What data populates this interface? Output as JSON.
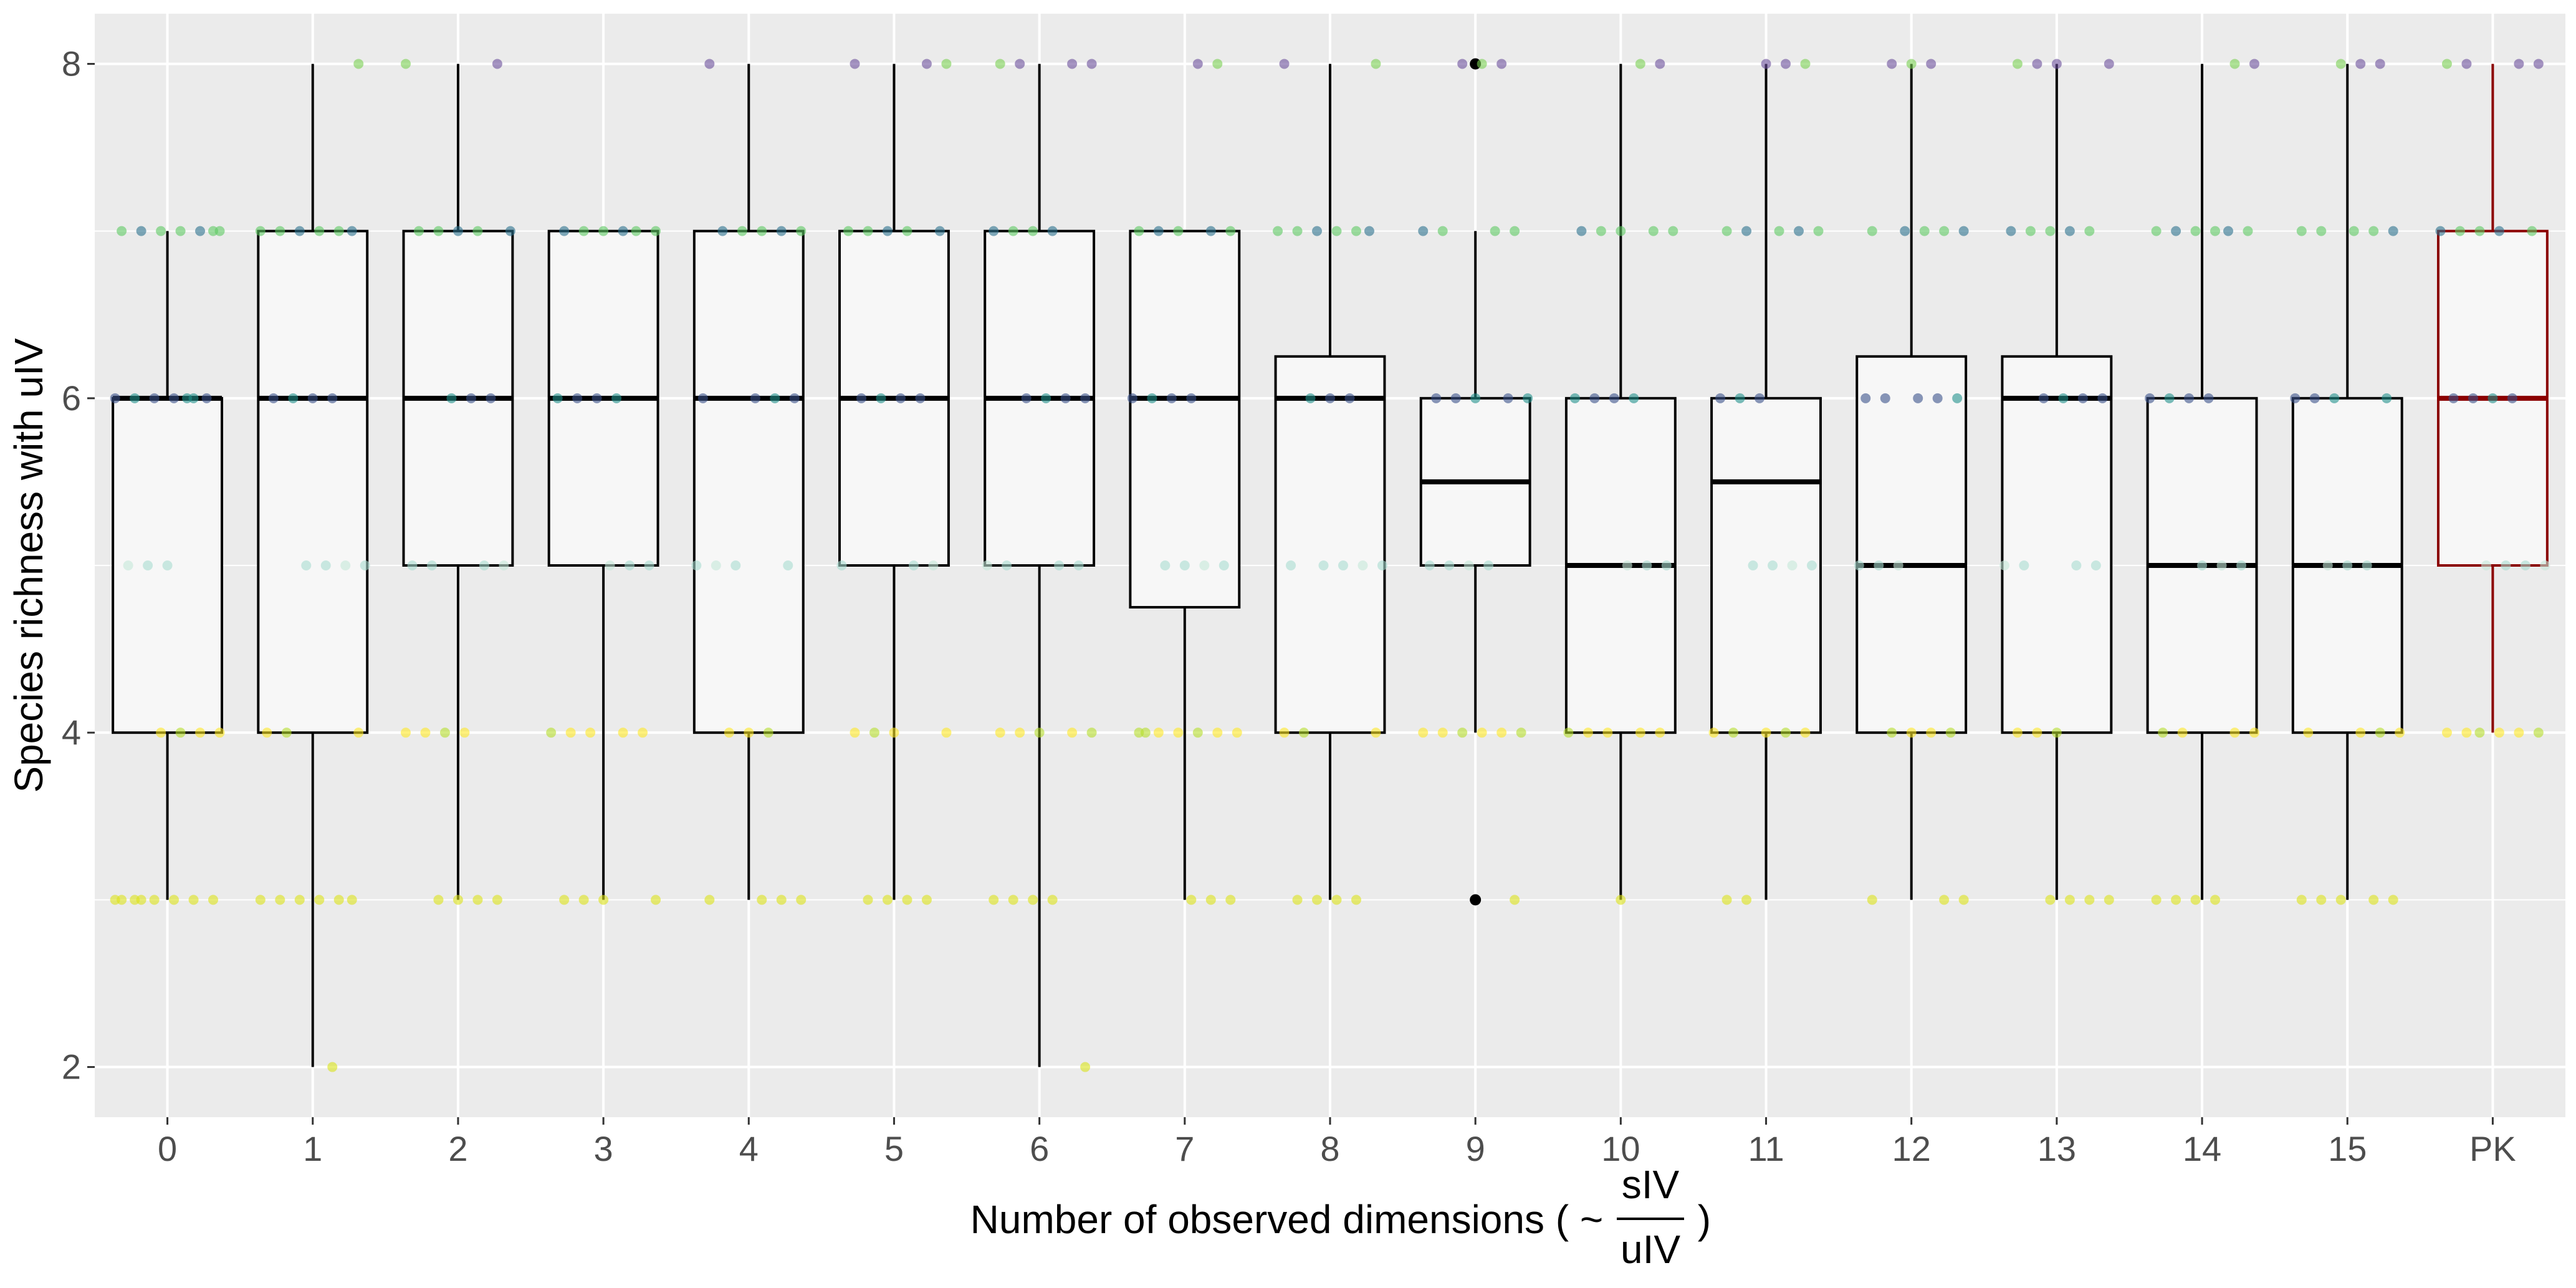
{
  "chart_data": {
    "type": "box",
    "xlabel": {
      "prefix": "Number of observed dimensions ( ~ ",
      "numerator": "sIV",
      "denominator": "uIV",
      "suffix": " )"
    },
    "ylabel": "Species richness with uIV",
    "ylim": [
      1.7,
      8.3
    ],
    "yticks": [
      2,
      4,
      6,
      8
    ],
    "grid": true,
    "categories": [
      "0",
      "1",
      "2",
      "3",
      "4",
      "5",
      "6",
      "7",
      "8",
      "9",
      "10",
      "11",
      "12",
      "13",
      "14",
      "15",
      "PK"
    ],
    "highlight": {
      "category": "PK",
      "color": "#8b0000"
    },
    "boxes": [
      {
        "category": "0",
        "whisker_low": 3,
        "q1": 4,
        "median": 6,
        "q3": 6,
        "whisker_high": 7,
        "outliers": []
      },
      {
        "category": "1",
        "whisker_low": 2,
        "q1": 4,
        "median": 6,
        "q3": 7,
        "whisker_high": 8,
        "outliers": []
      },
      {
        "category": "2",
        "whisker_low": 3,
        "q1": 5,
        "median": 6,
        "q3": 7,
        "whisker_high": 8,
        "outliers": []
      },
      {
        "category": "3",
        "whisker_low": 3,
        "q1": 5,
        "median": 6,
        "q3": 7,
        "whisker_high": 7,
        "outliers": []
      },
      {
        "category": "4",
        "whisker_low": 3,
        "q1": 4,
        "median": 6,
        "q3": 7,
        "whisker_high": 8,
        "outliers": []
      },
      {
        "category": "5",
        "whisker_low": 3,
        "q1": 5,
        "median": 6,
        "q3": 7,
        "whisker_high": 8,
        "outliers": []
      },
      {
        "category": "6",
        "whisker_low": 2,
        "q1": 5,
        "median": 6,
        "q3": 7,
        "whisker_high": 8,
        "outliers": []
      },
      {
        "category": "7",
        "whisker_low": 3,
        "q1": 4.75,
        "median": 6,
        "q3": 7,
        "whisker_high": 7,
        "outliers": []
      },
      {
        "category": "8",
        "whisker_low": 3,
        "q1": 4,
        "median": 6,
        "q3": 6.25,
        "whisker_high": 8,
        "outliers": []
      },
      {
        "category": "9",
        "whisker_low": 4,
        "q1": 5,
        "median": 5.5,
        "q3": 6,
        "whisker_high": 7,
        "outliers": [
          3,
          8
        ]
      },
      {
        "category": "10",
        "whisker_low": 3,
        "q1": 4,
        "median": 5,
        "q3": 6,
        "whisker_high": 8,
        "outliers": []
      },
      {
        "category": "11",
        "whisker_low": 3,
        "q1": 4,
        "median": 5.5,
        "q3": 6,
        "whisker_high": 8,
        "outliers": []
      },
      {
        "category": "12",
        "whisker_low": 3,
        "q1": 4,
        "median": 5,
        "q3": 6.25,
        "whisker_high": 8,
        "outliers": []
      },
      {
        "category": "13",
        "whisker_low": 3,
        "q1": 4,
        "median": 6,
        "q3": 6.25,
        "whisker_high": 8,
        "outliers": []
      },
      {
        "category": "14",
        "whisker_low": 3,
        "q1": 4,
        "median": 5,
        "q3": 6,
        "whisker_high": 8,
        "outliers": []
      },
      {
        "category": "15",
        "whisker_low": 3,
        "q1": 4,
        "median": 5,
        "q3": 6,
        "whisker_high": 8,
        "outliers": []
      },
      {
        "category": "PK",
        "whisker_low": 4,
        "q1": 5,
        "median": 6,
        "q3": 7,
        "whisker_high": 8,
        "outliers": []
      }
    ],
    "jitter_points": [
      {
        "category": "0",
        "values": [
          3,
          3,
          3,
          3,
          3,
          3,
          3,
          3,
          4,
          4,
          4,
          4,
          5,
          5,
          5,
          6,
          6,
          6,
          6,
          6,
          6,
          6,
          7,
          7,
          7,
          7,
          7,
          7,
          7
        ]
      },
      {
        "category": "1",
        "values": [
          2,
          3,
          3,
          3,
          3,
          3,
          3,
          4,
          4,
          4,
          5,
          5,
          5,
          5,
          6,
          6,
          6,
          6,
          7,
          7,
          7,
          7,
          7,
          7,
          8
        ]
      },
      {
        "category": "2",
        "values": [
          3,
          3,
          3,
          3,
          4,
          4,
          4,
          4,
          5,
          5,
          5,
          5,
          6,
          6,
          6,
          7,
          7,
          7,
          7,
          7,
          8,
          8
        ]
      },
      {
        "category": "3",
        "values": [
          3,
          3,
          3,
          3,
          4,
          4,
          4,
          4,
          4,
          5,
          5,
          5,
          6,
          6,
          6,
          6,
          7,
          7,
          7,
          7,
          7,
          7
        ]
      },
      {
        "category": "4",
        "values": [
          3,
          3,
          3,
          3,
          4,
          4,
          4,
          5,
          5,
          5,
          5,
          6,
          6,
          6,
          6,
          7,
          7,
          7,
          7,
          7,
          8
        ]
      },
      {
        "category": "5",
        "values": [
          3,
          3,
          3,
          3,
          4,
          4,
          4,
          4,
          5,
          5,
          5,
          6,
          6,
          6,
          6,
          7,
          7,
          7,
          7,
          7,
          8,
          8,
          8
        ]
      },
      {
        "category": "6",
        "values": [
          2,
          3,
          3,
          3,
          3,
          4,
          4,
          4,
          4,
          4,
          5,
          5,
          5,
          5,
          6,
          6,
          6,
          6,
          7,
          7,
          7,
          7,
          8,
          8,
          8,
          8
        ]
      },
      {
        "category": "7",
        "values": [
          3,
          3,
          3,
          4,
          4,
          4,
          4,
          4,
          4,
          4,
          5,
          5,
          5,
          5,
          6,
          6,
          6,
          6,
          7,
          7,
          7,
          7,
          7,
          8,
          8
        ]
      },
      {
        "category": "8",
        "values": [
          3,
          3,
          3,
          3,
          4,
          4,
          4,
          5,
          5,
          5,
          5,
          5,
          6,
          6,
          6,
          7,
          7,
          7,
          7,
          7,
          7,
          8,
          8
        ]
      },
      {
        "category": "9",
        "values": [
          3,
          4,
          4,
          4,
          4,
          4,
          4,
          5,
          5,
          5,
          5,
          6,
          6,
          6,
          6,
          6,
          7,
          7,
          7,
          7,
          8,
          8,
          8
        ]
      },
      {
        "category": "10",
        "values": [
          3,
          4,
          4,
          4,
          4,
          4,
          5,
          5,
          5,
          6,
          6,
          6,
          6,
          7,
          7,
          7,
          7,
          7,
          8,
          8
        ]
      },
      {
        "category": "11",
        "values": [
          3,
          3,
          4,
          4,
          4,
          4,
          4,
          5,
          5,
          5,
          5,
          6,
          6,
          6,
          7,
          7,
          7,
          7,
          7,
          8,
          8,
          8
        ]
      },
      {
        "category": "12",
        "values": [
          3,
          3,
          3,
          4,
          4,
          4,
          4,
          5,
          5,
          5,
          6,
          6,
          6,
          6,
          6,
          7,
          7,
          7,
          7,
          7,
          8,
          8,
          8
        ]
      },
      {
        "category": "13",
        "values": [
          3,
          3,
          3,
          3,
          4,
          4,
          4,
          5,
          5,
          5,
          5,
          6,
          6,
          6,
          6,
          7,
          7,
          7,
          7,
          7,
          8,
          8,
          8,
          8
        ]
      },
      {
        "category": "14",
        "values": [
          3,
          3,
          3,
          3,
          4,
          4,
          4,
          4,
          5,
          5,
          5,
          6,
          6,
          6,
          6,
          7,
          7,
          7,
          7,
          7,
          7,
          8,
          8
        ]
      },
      {
        "category": "15",
        "values": [
          3,
          3,
          3,
          3,
          3,
          4,
          4,
          4,
          4,
          5,
          5,
          5,
          6,
          6,
          6,
          6,
          7,
          7,
          7,
          7,
          7,
          8,
          8,
          8
        ]
      },
      {
        "category": "PK",
        "values": [
          4,
          4,
          4,
          4,
          4,
          4,
          5,
          5,
          5,
          5,
          6,
          6,
          6,
          6,
          7,
          7,
          7,
          7,
          7,
          8,
          8,
          8,
          8
        ]
      }
    ]
  }
}
